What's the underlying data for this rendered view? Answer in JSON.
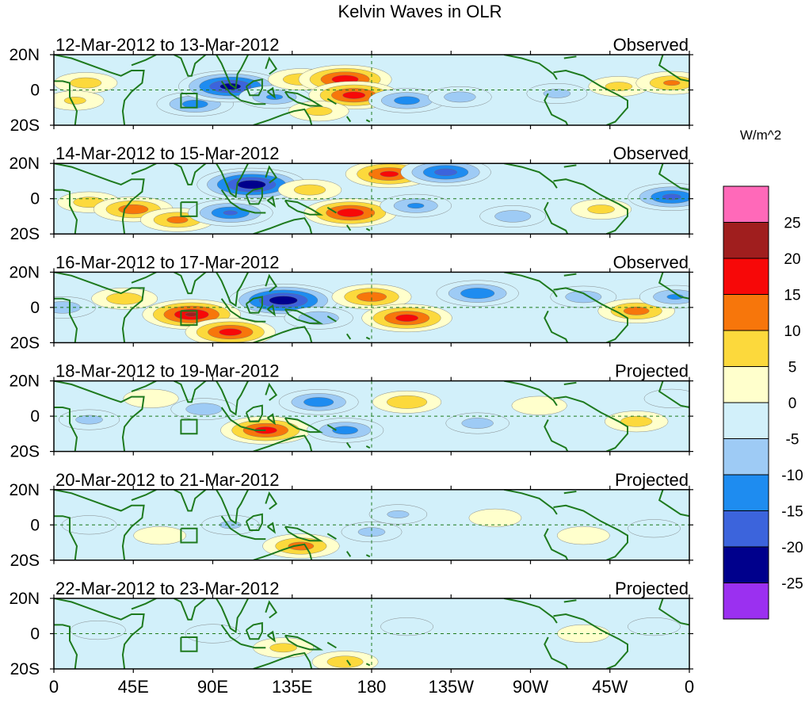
{
  "chart_data": {
    "type": "heatmap",
    "title": "Kelvin Waves in OLR",
    "units": "W/m^2",
    "variable": "OLR",
    "x_range": [
      0,
      360
    ],
    "y_range": [
      -20,
      20
    ],
    "x_ticks": [
      {
        "lon": 0,
        "label": "0"
      },
      {
        "lon": 45,
        "label": "45E"
      },
      {
        "lon": 90,
        "label": "90E"
      },
      {
        "lon": 135,
        "label": "135E"
      },
      {
        "lon": 180,
        "label": "180"
      },
      {
        "lon": 225,
        "label": "135W"
      },
      {
        "lon": 270,
        "label": "90W"
      },
      {
        "lon": 315,
        "label": "45W"
      },
      {
        "lon": 360,
        "label": "0"
      }
    ],
    "y_ticks": [
      {
        "lat": 20,
        "label": "20N"
      },
      {
        "lat": 0,
        "label": "0"
      },
      {
        "lat": -20,
        "label": "20S"
      }
    ],
    "colorbar": {
      "levels": [
        -25,
        -20,
        -15,
        -10,
        -5,
        0,
        5,
        10,
        15,
        20,
        25
      ],
      "labels": [
        "25",
        "20",
        "15",
        "10",
        "5",
        "0",
        "-5",
        "-10",
        "-15",
        "-20",
        "-25"
      ],
      "colors": [
        "#9b30f0",
        "#00008c",
        "#3c64dc",
        "#1e8cf0",
        "#9ecbf5",
        "#d2f0fa",
        "#ffffcc",
        "#fcd93c",
        "#f7760b",
        "#f70808",
        "#a01e1e",
        "#ff69b9"
      ]
    },
    "panels": [
      {
        "period": "12-Mar-2012 to 13-Mar-2012",
        "status": "Observed",
        "anomalies": [
          {
            "lon": 18,
            "lat": 4,
            "value": 7
          },
          {
            "lon": 12,
            "lat": -6,
            "value": 5
          },
          {
            "lon": 80,
            "lat": -8,
            "value": -12
          },
          {
            "lon": 100,
            "lat": 2,
            "value": -22
          },
          {
            "lon": 125,
            "lat": -4,
            "value": -10
          },
          {
            "lon": 140,
            "lat": 6,
            "value": 8
          },
          {
            "lon": 165,
            "lat": 6,
            "value": 18
          },
          {
            "lon": 170,
            "lat": -3,
            "value": 17
          },
          {
            "lon": 150,
            "lat": -12,
            "value": 6
          },
          {
            "lon": 200,
            "lat": -6,
            "value": -12
          },
          {
            "lon": 230,
            "lat": -4,
            "value": -7
          },
          {
            "lon": 285,
            "lat": -2,
            "value": -6
          },
          {
            "lon": 320,
            "lat": 2,
            "value": 6
          },
          {
            "lon": 350,
            "lat": 4,
            "value": 10
          }
        ]
      },
      {
        "period": "14-Mar-2012 to 15-Mar-2012",
        "status": "Observed",
        "anomalies": [
          {
            "lon": 20,
            "lat": -2,
            "value": 7
          },
          {
            "lon": 45,
            "lat": -6,
            "value": 13
          },
          {
            "lon": 70,
            "lat": -12,
            "value": 11
          },
          {
            "lon": 112,
            "lat": 8,
            "value": -24
          },
          {
            "lon": 100,
            "lat": -8,
            "value": -15
          },
          {
            "lon": 145,
            "lat": 5,
            "value": 7
          },
          {
            "lon": 168,
            "lat": -8,
            "value": 18
          },
          {
            "lon": 190,
            "lat": 14,
            "value": 16
          },
          {
            "lon": 222,
            "lat": 15,
            "value": -17
          },
          {
            "lon": 205,
            "lat": -4,
            "value": -10
          },
          {
            "lon": 260,
            "lat": -10,
            "value": -8
          },
          {
            "lon": 310,
            "lat": -6,
            "value": 6
          },
          {
            "lon": 350,
            "lat": 1,
            "value": -16
          }
        ]
      },
      {
        "period": "16-Mar-2012 to 17-Mar-2012",
        "status": "Observed",
        "anomalies": [
          {
            "lon": 5,
            "lat": 0,
            "value": -8
          },
          {
            "lon": 40,
            "lat": 5,
            "value": 8
          },
          {
            "lon": 78,
            "lat": -4,
            "value": 20
          },
          {
            "lon": 100,
            "lat": -14,
            "value": 17
          },
          {
            "lon": 130,
            "lat": 4,
            "value": -24
          },
          {
            "lon": 150,
            "lat": -6,
            "value": -9
          },
          {
            "lon": 180,
            "lat": 6,
            "value": 13
          },
          {
            "lon": 200,
            "lat": -6,
            "value": 17
          },
          {
            "lon": 240,
            "lat": 8,
            "value": -14
          },
          {
            "lon": 300,
            "lat": 6,
            "value": -8
          },
          {
            "lon": 330,
            "lat": -2,
            "value": 12
          },
          {
            "lon": 352,
            "lat": 6,
            "value": -10
          }
        ]
      },
      {
        "period": "18-Mar-2012 to 19-Mar-2012",
        "status": "Projected",
        "anomalies": [
          {
            "lon": 20,
            "lat": -2,
            "value": -6
          },
          {
            "lon": 55,
            "lat": 10,
            "value": 4
          },
          {
            "lon": 85,
            "lat": 4,
            "value": -8
          },
          {
            "lon": 120,
            "lat": -8,
            "value": 17
          },
          {
            "lon": 150,
            "lat": 8,
            "value": -13
          },
          {
            "lon": 165,
            "lat": -8,
            "value": -12
          },
          {
            "lon": 200,
            "lat": 8,
            "value": 9
          },
          {
            "lon": 240,
            "lat": -4,
            "value": -7
          },
          {
            "lon": 275,
            "lat": 6,
            "value": 4
          },
          {
            "lon": 330,
            "lat": -3,
            "value": 7
          },
          {
            "lon": 350,
            "lat": 10,
            "value": -4
          }
        ]
      },
      {
        "period": "20-Mar-2012 to 21-Mar-2012",
        "status": "Projected",
        "anomalies": [
          {
            "lon": 20,
            "lat": 0,
            "value": -4
          },
          {
            "lon": 60,
            "lat": -6,
            "value": 3
          },
          {
            "lon": 100,
            "lat": 0,
            "value": -5
          },
          {
            "lon": 140,
            "lat": -12,
            "value": 12
          },
          {
            "lon": 180,
            "lat": -4,
            "value": -6
          },
          {
            "lon": 195,
            "lat": 6,
            "value": -5
          },
          {
            "lon": 250,
            "lat": 4,
            "value": 3
          },
          {
            "lon": 300,
            "lat": -6,
            "value": 3
          },
          {
            "lon": 340,
            "lat": -2,
            "value": -3
          }
        ]
      },
      {
        "period": "22-Mar-2012 to 23-Mar-2012",
        "status": "Projected",
        "anomalies": [
          {
            "lon": 25,
            "lat": 2,
            "value": -4
          },
          {
            "lon": 90,
            "lat": 0,
            "value": -4
          },
          {
            "lon": 130,
            "lat": -8,
            "value": 6
          },
          {
            "lon": 165,
            "lat": -16,
            "value": 8
          },
          {
            "lon": 200,
            "lat": 4,
            "value": -3
          },
          {
            "lon": 300,
            "lat": 0,
            "value": 3
          },
          {
            "lon": 340,
            "lat": 4,
            "value": -3
          }
        ]
      }
    ]
  },
  "colors": {
    "coastline": "#1e7a1e",
    "reference_lines": "#1e7a1e",
    "frame": "#000000"
  }
}
